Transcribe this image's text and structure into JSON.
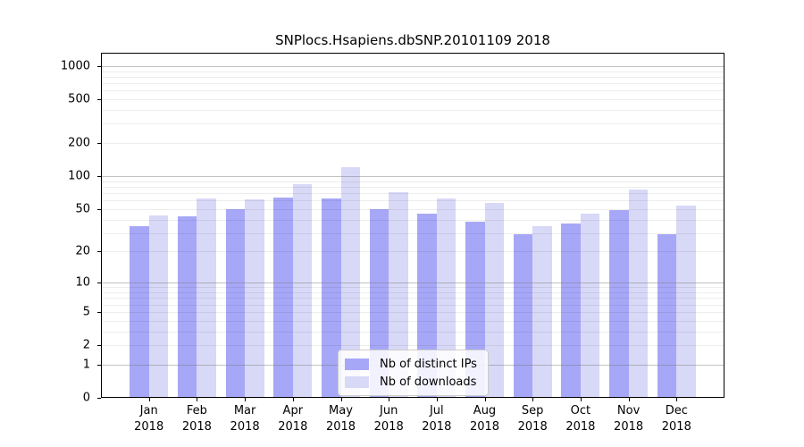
{
  "chart_data": {
    "type": "bar",
    "title": "SNPlocs.Hsapiens.dbSNP.20101109 2018",
    "categories": [
      "Jan",
      "Feb",
      "Mar",
      "Apr",
      "May",
      "Jun",
      "Jul",
      "Aug",
      "Sep",
      "Oct",
      "Nov",
      "Dec"
    ],
    "year": "2018",
    "series": [
      {
        "name": "Nb of distinct IPs",
        "color": "#a7a7f7",
        "values": [
          35,
          43,
          50,
          64,
          63,
          50,
          45,
          38,
          29,
          37,
          49,
          29
        ]
      },
      {
        "name": "Nb of downloads",
        "color": "#d8d8f7",
        "values": [
          44,
          62,
          61,
          85,
          121,
          71,
          62,
          57,
          35,
          45,
          75,
          54
        ]
      }
    ],
    "yscale": "log1p",
    "yticks": [
      1000,
      500,
      200,
      100,
      50,
      20,
      10,
      5,
      2,
      1,
      0
    ],
    "ylim": [
      0,
      1320
    ],
    "xlabel": "",
    "ylabel": "",
    "grid": true,
    "legend_position": "inside-bottom-center"
  }
}
